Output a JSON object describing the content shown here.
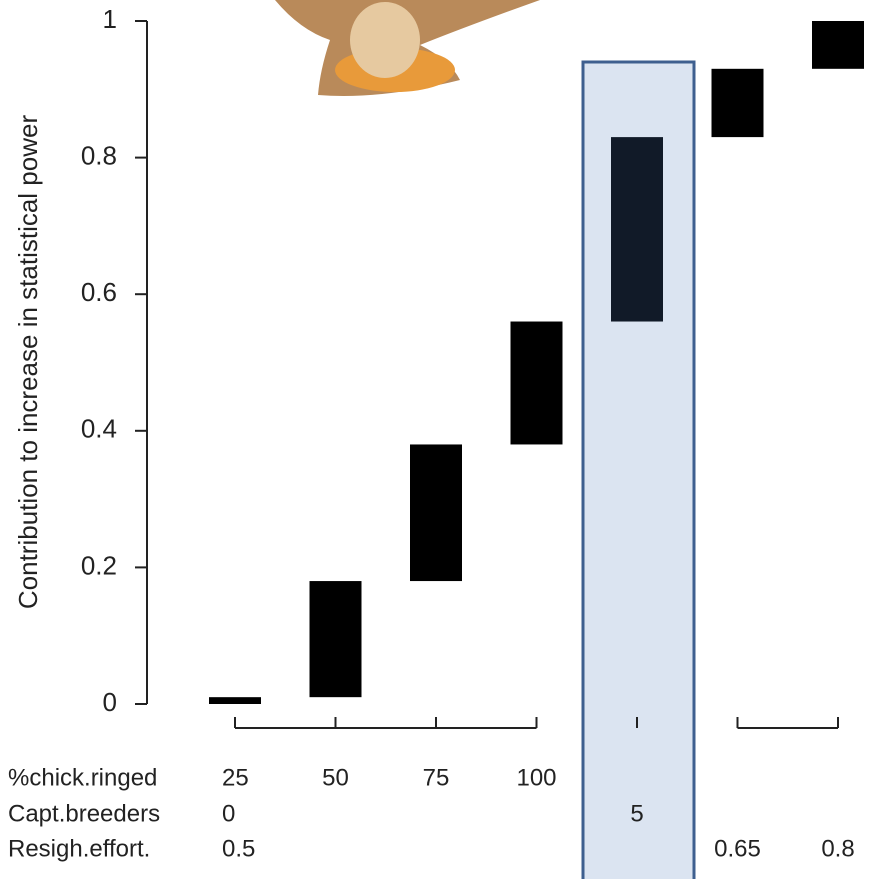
{
  "chart_data": {
    "type": "waterfall",
    "y_label": "Contribution to increase in statistical power",
    "values": [
      0.01,
      0.17,
      0.2,
      0.18,
      0.27,
      0.1,
      0.07
    ],
    "colors": [
      "#000000",
      "#000000",
      "#000000",
      "#000000",
      "#111a28",
      "#000000",
      "#000000"
    ],
    "highlight": 4,
    "ylim": [
      0,
      1
    ],
    "yticks": [
      0,
      0.2,
      0.4,
      0.6,
      0.8,
      1
    ],
    "x_table": {
      "row_labels": [
        "%chick.ringed",
        "Capt.breeders",
        "Resigh.effort."
      ],
      "rows": [
        [
          "25",
          "50",
          "75",
          "100",
          null,
          null,
          null
        ],
        [
          "0",
          null,
          null,
          null,
          "5",
          null,
          null
        ],
        [
          "0.5",
          null,
          null,
          null,
          null,
          "0.65",
          "0.8"
        ]
      ]
    }
  }
}
